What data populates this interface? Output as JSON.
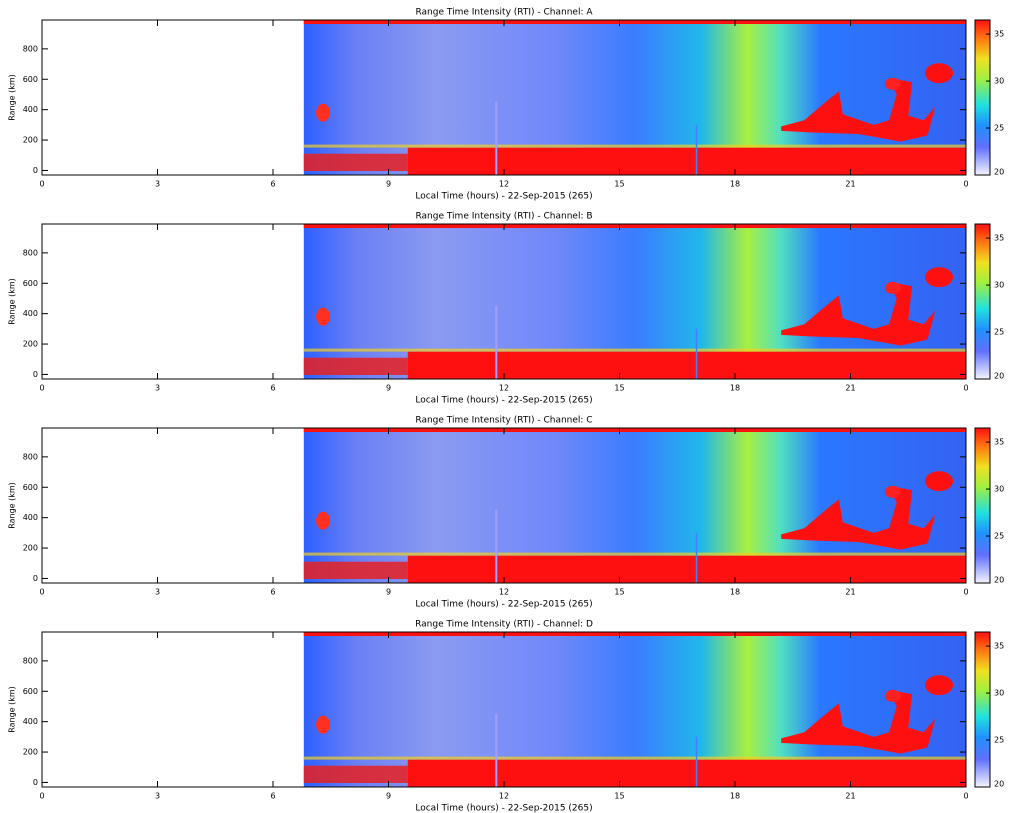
{
  "chart_data": [
    {
      "type": "heatmap",
      "title": "Range Time Intensity (RTI) - Channel: A",
      "xlabel": "Local Time (hours) - 22-Sep-2015 (265)",
      "ylabel": "Range (km)",
      "xlim": [
        0,
        24
      ],
      "xticks": [
        0,
        3,
        6,
        9,
        12,
        15,
        18,
        21,
        {
          "value": 24,
          "label": "0"
        }
      ],
      "ylim": [
        -30,
        990
      ],
      "yticks": [
        0,
        200,
        400,
        600,
        800
      ],
      "clim": [
        20,
        36.5
      ],
      "cticks": [
        20,
        25,
        30,
        35
      ]
    },
    {
      "type": "heatmap",
      "title": "Range Time Intensity (RTI) - Channel: B",
      "xlabel": "Local Time (hours) - 22-Sep-2015 (265)",
      "ylabel": "Range (km)",
      "xlim": [
        0,
        24
      ],
      "xticks": [
        0,
        3,
        6,
        9,
        12,
        15,
        18,
        21,
        {
          "value": 24,
          "label": "0"
        }
      ],
      "ylim": [
        -30,
        990
      ],
      "yticks": [
        0,
        200,
        400,
        600,
        800
      ],
      "clim": [
        20,
        36.5
      ],
      "cticks": [
        20,
        25,
        30,
        35
      ]
    },
    {
      "type": "heatmap",
      "title": "Range Time Intensity (RTI) - Channel: C",
      "xlabel": "Local Time (hours) - 22-Sep-2015 (265)",
      "ylabel": "Range (km)",
      "xlim": [
        0,
        24
      ],
      "xticks": [
        0,
        3,
        6,
        9,
        12,
        15,
        18,
        21,
        {
          "value": 24,
          "label": "0"
        }
      ],
      "ylim": [
        -30,
        990
      ],
      "yticks": [
        0,
        200,
        400,
        600,
        800
      ],
      "clim": [
        20,
        36.5
      ],
      "cticks": [
        20,
        25,
        30,
        35
      ]
    },
    {
      "type": "heatmap",
      "title": "Range Time Intensity (RTI) - Channel: D",
      "xlabel": "Local Time (hours) - 22-Sep-2015 (265)",
      "ylabel": "Range (km)",
      "xlim": [
        0,
        24
      ],
      "xticks": [
        0,
        3,
        6,
        9,
        12,
        15,
        18,
        21,
        {
          "value": 24,
          "label": "0"
        }
      ],
      "ylim": [
        -30,
        990
      ],
      "yticks": [
        0,
        200,
        400,
        600,
        800
      ],
      "clim": [
        20,
        36.5
      ],
      "cticks": [
        20,
        25,
        30,
        35
      ]
    }
  ]
}
